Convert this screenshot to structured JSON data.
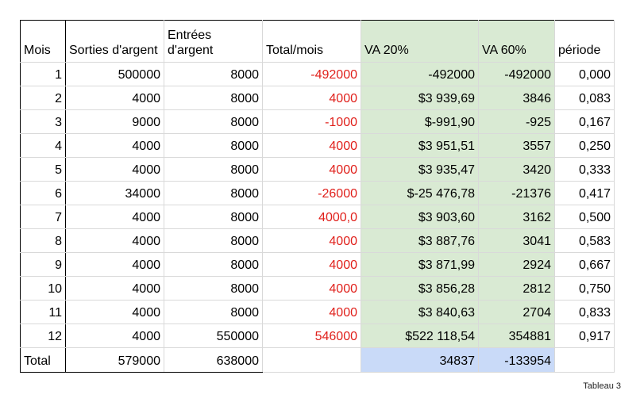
{
  "table": {
    "headers": [
      "Mois",
      "Sorties d'argent",
      "Entrées d'argent",
      "Total/mois",
      "VA 20%",
      "VA 60%",
      "période"
    ],
    "rows": [
      [
        "1",
        "500000",
        "8000",
        "-492000",
        "-492000",
        "-492000",
        "0,000"
      ],
      [
        "2",
        "4000",
        "8000",
        "4000",
        "$3 939,69",
        "3846",
        "0,083"
      ],
      [
        "3",
        "9000",
        "8000",
        "-1000",
        "$-991,90",
        "-925",
        "0,167"
      ],
      [
        "4",
        "4000",
        "8000",
        "4000",
        "$3 951,51",
        "3557",
        "0,250"
      ],
      [
        "5",
        "4000",
        "8000",
        "4000",
        "$3 935,47",
        "3420",
        "0,333"
      ],
      [
        "6",
        "34000",
        "8000",
        "-26000",
        "$-25 476,78",
        "-21376",
        "0,417"
      ],
      [
        "7",
        "4000",
        "8000",
        "4000,0",
        "$3 903,60",
        "3162",
        "0,500"
      ],
      [
        "8",
        "4000",
        "8000",
        "4000",
        "$3 887,76",
        "3041",
        "0,583"
      ],
      [
        "9",
        "4000",
        "8000",
        "4000",
        "$3 871,99",
        "2924",
        "0,667"
      ],
      [
        "10",
        "4000",
        "8000",
        "4000",
        "$3 856,28",
        "2812",
        "0,750"
      ],
      [
        "11",
        "4000",
        "8000",
        "4000",
        "$3 840,63",
        "2704",
        "0,833"
      ],
      [
        "12",
        "4000",
        "550000",
        "546000",
        "$522 118,54",
        "354881",
        "0,917"
      ]
    ],
    "total_row": [
      "Total",
      "579000",
      "638000",
      "",
      "34837",
      "-133954",
      ""
    ]
  },
  "caption": "Tableau 3",
  "colors": {
    "negative_text": "#e0201b",
    "va_fill": "#d9ead3",
    "total_fill": "#c9daf8"
  }
}
